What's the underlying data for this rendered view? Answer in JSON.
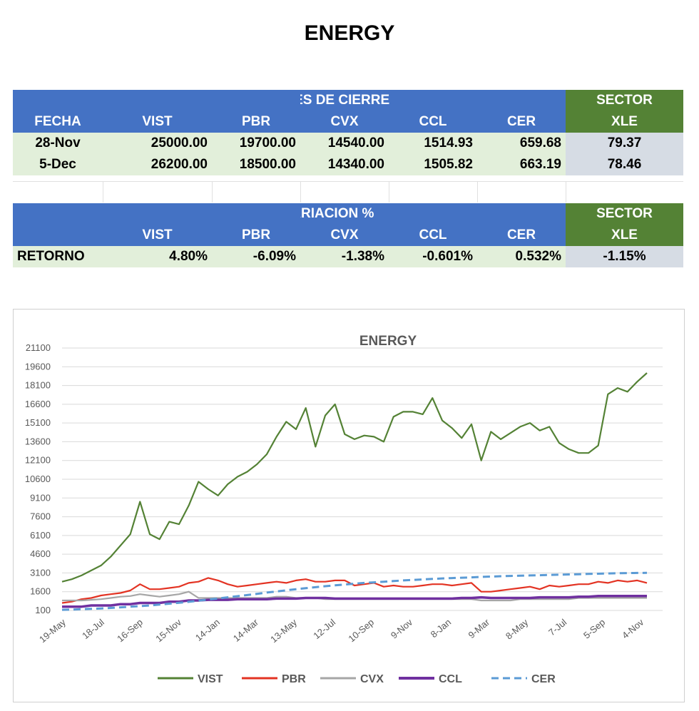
{
  "page_title": "ENERGY",
  "table1": {
    "group_header": "VALORES DE CIERRE",
    "sector_label": "SECTOR",
    "columns": [
      "FECHA",
      "VIST",
      "PBR",
      "CVX",
      "CCL",
      "CER",
      "XLE"
    ],
    "rows": [
      {
        "fecha": "28-Nov",
        "vist": "25000.00",
        "pbr": "19700.00",
        "cvx": "14540.00",
        "ccl": "1514.93",
        "cer": "659.68",
        "xle": "79.37"
      },
      {
        "fecha": "5-Dec",
        "vist": "26200.00",
        "pbr": "18500.00",
        "cvx": "14340.00",
        "ccl": "1505.82",
        "cer": "663.19",
        "xle": "78.46"
      }
    ]
  },
  "table2": {
    "group_header": "VARIACION %",
    "sector_label": "SECTOR",
    "columns": [
      "",
      "VIST",
      "PBR",
      "CVX",
      "CCL",
      "CER",
      "XLE"
    ],
    "row": {
      "label": "RETORNO",
      "vist": "4.80%",
      "pbr": "-6.09%",
      "cvx": "-1.38%",
      "ccl": "-0.601%",
      "cer": "0.532%",
      "xle": "-1.15%"
    }
  },
  "chart_data": {
    "type": "line",
    "title": "ENERGY",
    "xlabel": "",
    "ylabel": "",
    "ylim": [
      100,
      21100
    ],
    "yticks": [
      "21100",
      "19600",
      "18100",
      "16600",
      "15100",
      "13600",
      "12100",
      "10600",
      "9100",
      "7600",
      "6100",
      "4600",
      "3100",
      "1600",
      "100"
    ],
    "xticks": [
      "19-May",
      "18-Jul",
      "16-Sep",
      "15-Nov",
      "14-Jan",
      "14-Mar",
      "13-May",
      "12-Jul",
      "10-Sep",
      "9-Nov",
      "8-Jan",
      "9-Mar",
      "8-May",
      "7-Jul",
      "5-Sep",
      "4-Nov"
    ],
    "grid": true,
    "legend_position": "bottom",
    "series": [
      {
        "name": "VIST",
        "color": "#548235",
        "dash": false,
        "values": [
          2400,
          2600,
          2900,
          3300,
          3700,
          4400,
          5300,
          6200,
          8800,
          6200,
          5800,
          7200,
          7000,
          8500,
          10400,
          9800,
          9300,
          10200,
          10800,
          11200,
          11800,
          12600,
          14000,
          15200,
          14600,
          16300,
          13200,
          15700,
          16600,
          14200,
          13800,
          14100,
          14000,
          13600,
          15600,
          16000,
          16000,
          15800,
          17100,
          15300,
          14700,
          13900,
          15000,
          12100,
          14400,
          13800,
          14300,
          14800,
          15100,
          14500,
          14800,
          13500,
          13000,
          12700,
          12700,
          13300,
          17400,
          17900,
          17600,
          18400,
          19100
        ]
      },
      {
        "name": "PBR",
        "color": "#e33323",
        "dash": false,
        "values": [
          700,
          800,
          1000,
          1100,
          1300,
          1400,
          1500,
          1700,
          2200,
          1800,
          1800,
          1900,
          2000,
          2300,
          2400,
          2700,
          2500,
          2200,
          2000,
          2100,
          2200,
          2300,
          2400,
          2300,
          2500,
          2600,
          2400,
          2400,
          2500,
          2500,
          2100,
          2200,
          2300,
          2000,
          2100,
          2000,
          2000,
          2100,
          2200,
          2200,
          2100,
          2200,
          2300,
          1600,
          1600,
          1700,
          1800,
          1900,
          2000,
          1800,
          2100,
          2000,
          2100,
          2200,
          2200,
          2400,
          2300,
          2500,
          2400,
          2500,
          2300
        ]
      },
      {
        "name": "CVX",
        "color": "#a6a6a6",
        "dash": false,
        "values": [
          900,
          900,
          900,
          950,
          1000,
          1100,
          1200,
          1250,
          1400,
          1300,
          1200,
          1300,
          1400,
          1600,
          1100,
          1100,
          1100,
          1100,
          1100,
          1100,
          1100,
          1100,
          1200,
          1200,
          1100,
          1100,
          1100,
          1000,
          1000,
          1000,
          1000,
          1000,
          1000,
          1000,
          1000,
          1000,
          1000,
          1000,
          1000,
          1000,
          1000,
          1000,
          1000,
          900,
          900,
          900,
          900,
          1000,
          1000,
          1000,
          1000,
          1000,
          1000,
          1100,
          1100,
          1100,
          1100,
          1100,
          1100,
          1100,
          1100
        ]
      },
      {
        "name": "CCL",
        "color": "#7030a0",
        "dash": false,
        "values": [
          400,
          400,
          400,
          500,
          500,
          500,
          600,
          600,
          700,
          700,
          700,
          800,
          800,
          900,
          900,
          950,
          950,
          950,
          1000,
          1000,
          1000,
          1000,
          1050,
          1050,
          1050,
          1100,
          1100,
          1100,
          1050,
          1050,
          1050,
          1050,
          1050,
          1050,
          1050,
          1050,
          1050,
          1050,
          1050,
          1050,
          1050,
          1100,
          1100,
          1150,
          1100,
          1100,
          1100,
          1100,
          1100,
          1150,
          1150,
          1150,
          1150,
          1200,
          1200,
          1250,
          1250,
          1250,
          1250,
          1250,
          1250
        ]
      },
      {
        "name": "CER",
        "color": "#5b9bd5",
        "dash": true,
        "values": [
          150,
          170,
          200,
          230,
          260,
          300,
          350,
          400,
          450,
          500,
          570,
          640,
          710,
          790,
          880,
          970,
          1060,
          1150,
          1240,
          1330,
          1430,
          1530,
          1620,
          1710,
          1800,
          1880,
          1960,
          2040,
          2110,
          2180,
          2240,
          2300,
          2350,
          2400,
          2450,
          2500,
          2540,
          2580,
          2620,
          2660,
          2690,
          2720,
          2750,
          2780,
          2810,
          2840,
          2860,
          2880,
          2900,
          2920,
          2940,
          2960,
          2980,
          3000,
          3020,
          3040,
          3060,
          3080,
          3090,
          3100,
          3110
        ]
      }
    ]
  }
}
